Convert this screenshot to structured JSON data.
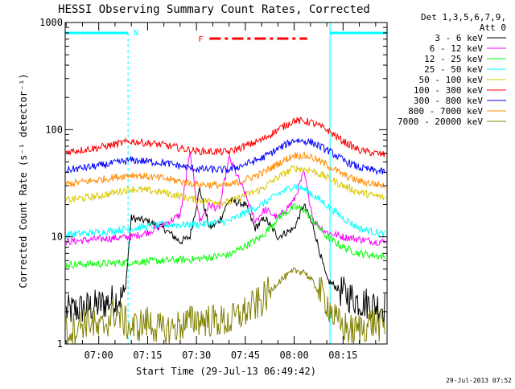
{
  "chart_data": {
    "type": "line",
    "title": "HESSI Observing Summary Count Rates, Corrected",
    "ylabel": "Corrected Count Rate (s⁻¹ detector⁻¹)",
    "xlabel": "Start Time (29-Jul-13 06:49:42)",
    "x_scale": "time",
    "y_scale": "log",
    "xlim": [
      "06:49:42",
      "08:28:30"
    ],
    "ylim": [
      1,
      1000
    ],
    "x_ticks": [
      "07:00",
      "07:15",
      "07:30",
      "07:45",
      "08:00",
      "08:15"
    ],
    "y_ticks": [
      "1",
      "10",
      "100",
      "1000"
    ],
    "grid": false,
    "legend_position": "right",
    "legend_header": [
      "Det 1,3,5,6,7,9,",
      "Att 0"
    ],
    "footer_date": "29-Jul-2013 07:52",
    "flags": {
      "night_label": "N",
      "flare_label": "F",
      "night_intervals": [
        [
          "06:49:42",
          "07:09:00"
        ],
        [
          "08:11:00",
          "08:28:30"
        ]
      ],
      "flare_interval": [
        "07:34:00",
        "08:04:00"
      ]
    },
    "series": [
      {
        "name": "3 - 6 keV",
        "color": "#000000",
        "x": [
          "06:50",
          "07:00",
          "07:08",
          "07:10",
          "07:15",
          "07:20",
          "07:25",
          "07:28",
          "07:31",
          "07:34",
          "07:37",
          "07:40",
          "07:45",
          "07:48",
          "07:51",
          "07:55",
          "08:00",
          "08:03",
          "08:06",
          "08:10",
          "08:15",
          "08:20",
          "08:25",
          "08:28"
        ],
        "y": [
          2.0,
          2.3,
          2.8,
          15,
          14,
          12,
          9,
          10,
          28,
          12,
          14,
          22,
          20,
          12,
          15,
          10,
          12,
          20,
          12,
          4,
          3,
          2.5,
          2.3,
          2.2
        ]
      },
      {
        "name": "6 - 12 keV",
        "color": "#ff00ff",
        "x": [
          "06:50",
          "07:00",
          "07:10",
          "07:15",
          "07:20",
          "07:25",
          "07:28",
          "07:31",
          "07:34",
          "07:37",
          "07:40",
          "07:45",
          "07:48",
          "07:51",
          "07:55",
          "08:00",
          "08:03",
          "08:06",
          "08:10",
          "08:15",
          "08:20",
          "08:25",
          "08:28"
        ],
        "y": [
          9,
          9.5,
          10,
          11,
          13,
          16,
          60,
          14,
          20,
          18,
          55,
          25,
          14,
          18,
          15,
          22,
          40,
          14,
          11,
          10,
          9.5,
          9,
          9
        ]
      },
      {
        "name": "12 - 25 keV",
        "color": "#00ff00",
        "x": [
          "06:50",
          "07:00",
          "07:10",
          "07:20",
          "07:30",
          "07:40",
          "07:50",
          "07:55",
          "08:00",
          "08:03",
          "08:06",
          "08:10",
          "08:15",
          "08:20",
          "08:28"
        ],
        "y": [
          5.5,
          5.6,
          5.8,
          6,
          6.2,
          6.8,
          10,
          15,
          19,
          18,
          14,
          10,
          8,
          7,
          6.5
        ]
      },
      {
        "name": "25 - 50 keV",
        "color": "#00ffff",
        "x": [
          "06:50",
          "07:00",
          "07:10",
          "07:20",
          "07:30",
          "07:40",
          "07:50",
          "07:55",
          "08:00",
          "08:03",
          "08:08",
          "08:15",
          "08:20",
          "08:28"
        ],
        "y": [
          10.5,
          11,
          12,
          13,
          13,
          14,
          20,
          25,
          30,
          28,
          22,
          15,
          12,
          10.5
        ]
      },
      {
        "name": "50 - 100 keV",
        "color": "#d8c800",
        "x": [
          "06:50",
          "07:00",
          "07:10",
          "07:20",
          "07:30",
          "07:40",
          "07:50",
          "07:55",
          "08:00",
          "08:05",
          "08:10",
          "08:15",
          "08:20",
          "08:28"
        ],
        "y": [
          22,
          24,
          28,
          26,
          22,
          21,
          28,
          36,
          44,
          42,
          36,
          30,
          26,
          23
        ]
      },
      {
        "name": "100 - 300 keV",
        "color": "#ff0000",
        "x": [
          "06:50",
          "07:00",
          "07:10",
          "07:20",
          "07:30",
          "07:40",
          "07:50",
          "07:55",
          "08:00",
          "08:05",
          "08:10",
          "08:15",
          "08:20",
          "08:28"
        ],
        "y": [
          62,
          68,
          78,
          72,
          63,
          62,
          80,
          100,
          122,
          118,
          100,
          78,
          64,
          58
        ]
      },
      {
        "name": "300 - 800 keV",
        "color": "#0000ff",
        "x": [
          "06:50",
          "07:00",
          "07:10",
          "07:20",
          "07:30",
          "07:40",
          "07:50",
          "07:55",
          "08:00",
          "08:05",
          "08:10",
          "08:15",
          "08:20",
          "08:28"
        ],
        "y": [
          42,
          46,
          52,
          49,
          43,
          42,
          54,
          66,
          80,
          77,
          65,
          52,
          44,
          40
        ]
      },
      {
        "name": "800 - 7000 keV",
        "color": "#ff8c00",
        "x": [
          "06:50",
          "07:00",
          "07:10",
          "07:20",
          "07:30",
          "07:40",
          "07:50",
          "07:55",
          "08:00",
          "08:05",
          "08:10",
          "08:15",
          "08:20",
          "08:28"
        ],
        "y": [
          31,
          34,
          38,
          35,
          31,
          30,
          39,
          48,
          58,
          56,
          47,
          38,
          33,
          30
        ]
      },
      {
        "name": "7000 - 20000 keV",
        "color": "#808000",
        "x": [
          "06:50",
          "06:57",
          "07:00",
          "07:05",
          "07:10",
          "07:15",
          "07:20",
          "07:25",
          "07:30",
          "07:40",
          "07:45",
          "07:50",
          "07:55",
          "08:00",
          "08:03",
          "08:05",
          "08:10",
          "08:13",
          "08:18",
          "08:24",
          "08:28"
        ],
        "y": [
          1.3,
          1.7,
          1.3,
          2,
          1.4,
          1.6,
          1.3,
          1.5,
          1.7,
          1.6,
          2,
          2.5,
          3.8,
          4.8,
          4.8,
          4,
          2.5,
          1.6,
          1.3,
          1.6,
          1.4
        ]
      }
    ]
  }
}
